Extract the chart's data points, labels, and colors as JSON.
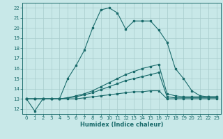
{
  "xlabel": "Humidex (Indice chaleur)",
  "background_color": "#c8e8e8",
  "line_color": "#1a6b6b",
  "grid_color": "#a8cccc",
  "xlim": [
    -0.5,
    23.5
  ],
  "ylim": [
    11.5,
    22.5
  ],
  "xticks": [
    0,
    1,
    2,
    3,
    4,
    5,
    6,
    7,
    8,
    9,
    10,
    11,
    12,
    13,
    14,
    15,
    16,
    17,
    18,
    19,
    20,
    21,
    22,
    23
  ],
  "yticks": [
    12,
    13,
    14,
    15,
    16,
    17,
    18,
    19,
    20,
    21,
    22
  ],
  "line1": {
    "x": [
      0,
      1,
      2,
      3,
      4,
      5,
      6,
      7,
      8,
      9,
      10,
      11,
      12,
      13,
      14,
      15,
      16,
      17,
      18,
      19,
      20,
      21,
      22,
      23
    ],
    "y": [
      13.0,
      11.8,
      13.0,
      13.0,
      13.0,
      15.0,
      16.3,
      17.8,
      20.0,
      21.8,
      22.0,
      21.5,
      19.9,
      20.7,
      20.7,
      20.7,
      19.8,
      18.6,
      16.0,
      15.0,
      13.8,
      13.3,
      13.2,
      13.2
    ]
  },
  "line2": {
    "x": [
      0,
      1,
      2,
      3,
      4,
      5,
      6,
      7,
      8,
      9,
      10,
      11,
      12,
      13,
      14,
      15,
      16,
      17,
      18,
      19,
      20,
      21,
      22,
      23
    ],
    "y": [
      13.0,
      13.0,
      13.0,
      13.0,
      13.0,
      13.1,
      13.3,
      13.5,
      13.8,
      14.2,
      14.6,
      15.0,
      15.4,
      15.7,
      16.0,
      16.2,
      16.4,
      13.5,
      13.3,
      13.2,
      13.2,
      13.2,
      13.2,
      13.2
    ]
  },
  "line3": {
    "x": [
      0,
      1,
      2,
      3,
      4,
      5,
      6,
      7,
      8,
      9,
      10,
      11,
      12,
      13,
      14,
      15,
      16,
      17,
      18,
      19,
      20,
      21,
      22,
      23
    ],
    "y": [
      13.0,
      13.0,
      13.0,
      13.0,
      13.0,
      13.1,
      13.2,
      13.4,
      13.6,
      13.9,
      14.2,
      14.5,
      14.8,
      15.0,
      15.2,
      15.4,
      15.6,
      13.2,
      13.1,
      13.1,
      13.1,
      13.1,
      13.1,
      13.1
    ]
  },
  "line4": {
    "x": [
      0,
      1,
      2,
      3,
      4,
      5,
      6,
      7,
      8,
      9,
      10,
      11,
      12,
      13,
      14,
      15,
      16,
      17,
      18,
      19,
      20,
      21,
      22,
      23
    ],
    "y": [
      13.0,
      13.0,
      13.0,
      13.0,
      13.0,
      13.0,
      13.0,
      13.1,
      13.2,
      13.3,
      13.4,
      13.5,
      13.6,
      13.7,
      13.7,
      13.8,
      13.8,
      13.0,
      13.0,
      13.0,
      13.0,
      13.0,
      13.0,
      13.0
    ]
  }
}
